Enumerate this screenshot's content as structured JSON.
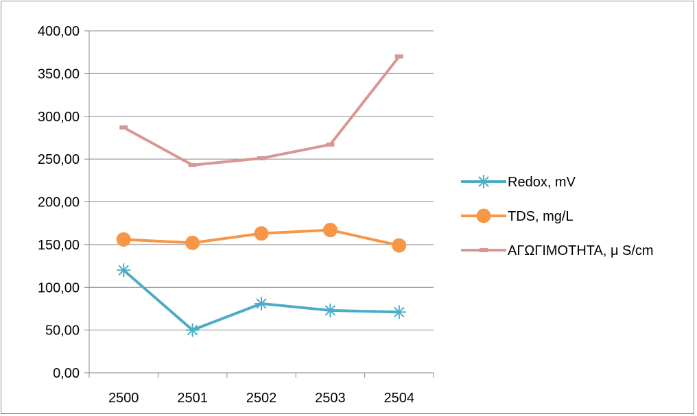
{
  "chart_data": {
    "type": "line",
    "categories": [
      "2500",
      "2501",
      "2502",
      "2503",
      "2504"
    ],
    "ylim": [
      0,
      400
    ],
    "yticks": [
      0,
      50,
      100,
      150,
      200,
      250,
      300,
      350,
      400
    ],
    "ytick_labels": [
      "0,00",
      "50,00",
      "100,00",
      "150,00",
      "200,00",
      "250,00",
      "300,00",
      "350,00",
      "400,00"
    ],
    "grid": true,
    "legend_position": "right",
    "series": [
      {
        "name": "Redox, mV",
        "values": [
          120,
          50,
          81,
          73,
          71
        ],
        "color": "#4bacc6",
        "marker": "asterisk"
      },
      {
        "name": "TDS, mg/L",
        "values": [
          156,
          152,
          163,
          167,
          149
        ],
        "color": "#f79646",
        "marker": "circle"
      },
      {
        "name": "ΑΓΩΓΙΜΟΤΗΤΑ, μ S/cm",
        "values": [
          287,
          243,
          251,
          267,
          370
        ],
        "color": "#d99694",
        "marker": "dash"
      }
    ]
  }
}
